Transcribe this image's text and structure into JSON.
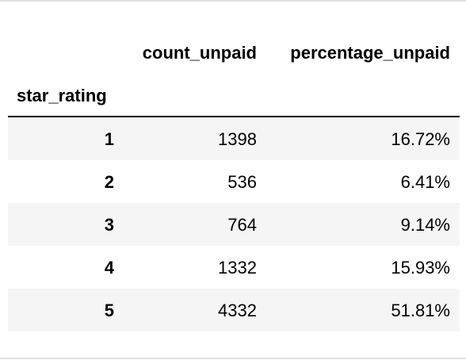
{
  "table": {
    "columns": {
      "count": "count_unpaid",
      "percentage": "percentage_unpaid"
    },
    "index_name": "star_rating",
    "rows": [
      {
        "index": "1",
        "count": "1398",
        "percentage": "16.72%"
      },
      {
        "index": "2",
        "count": "536",
        "percentage": "6.41%"
      },
      {
        "index": "3",
        "count": "764",
        "percentage": "9.14%"
      },
      {
        "index": "4",
        "count": "1332",
        "percentage": "15.93%"
      },
      {
        "index": "5",
        "count": "4332",
        "percentage": "51.81%"
      }
    ]
  }
}
